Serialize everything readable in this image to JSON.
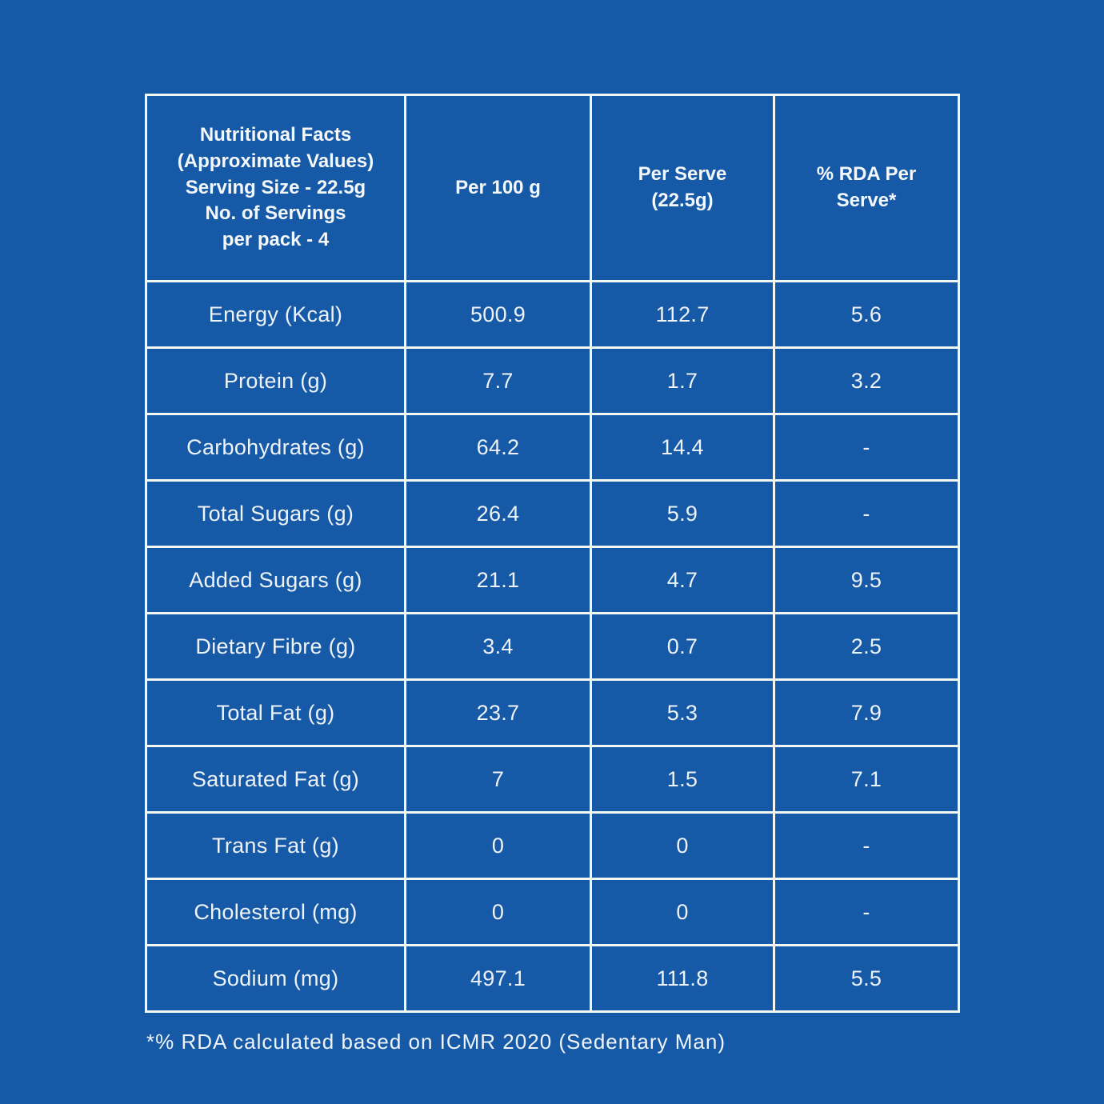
{
  "page": {
    "background_color": "#1659A6",
    "grid_line_color": "#F3F6F1",
    "text_color": "#EDF3F8"
  },
  "table": {
    "header": {
      "info_cell": "Nutritional Facts\n(Approximate Values)\nServing Size - 22.5g\nNo. of Servings\nper pack - 4",
      "per_100g": "Per 100 g",
      "per_serve": "Per Serve\n(22.5g)",
      "rda_per_serve": "% RDA Per\nServe*"
    },
    "rows": [
      {
        "label": "Energy (Kcal)",
        "per100g": "500.9",
        "per_serve": "112.7",
        "rda": "5.6"
      },
      {
        "label": "Protein (g)",
        "per100g": "7.7",
        "per_serve": "1.7",
        "rda": "3.2"
      },
      {
        "label": "Carbohydrates (g)",
        "per100g": "64.2",
        "per_serve": "14.4",
        "rda": "-"
      },
      {
        "label": "Total Sugars (g)",
        "per100g": "26.4",
        "per_serve": "5.9",
        "rda": "-"
      },
      {
        "label": "Added Sugars (g)",
        "per100g": "21.1",
        "per_serve": "4.7",
        "rda": "9.5"
      },
      {
        "label": "Dietary Fibre (g)",
        "per100g": "3.4",
        "per_serve": "0.7",
        "rda": "2.5"
      },
      {
        "label": "Total Fat (g)",
        "per100g": "23.7",
        "per_serve": "5.3",
        "rda": "7.9"
      },
      {
        "label": "Saturated Fat (g)",
        "per100g": "7",
        "per_serve": "1.5",
        "rda": "7.1"
      },
      {
        "label": "Trans Fat (g)",
        "per100g": "0",
        "per_serve": "0",
        "rda": "-"
      },
      {
        "label": "Cholesterol (mg)",
        "per100g": "0",
        "per_serve": "0",
        "rda": "-"
      },
      {
        "label": "Sodium (mg)",
        "per100g": "497.1",
        "per_serve": "111.8",
        "rda": "5.5"
      }
    ]
  },
  "footnote": "*% RDA calculated based on ICMR 2020 (Sedentary Man)",
  "chart_data": {
    "type": "table",
    "title": "Nutritional Facts (Approximate Values) Serving Size - 22.5g No. of Servings per pack - 4",
    "columns": [
      "Nutrient",
      "Per 100 g",
      "Per Serve (22.5g)",
      "% RDA Per Serve*"
    ],
    "rows": [
      [
        "Energy (Kcal)",
        "500.9",
        "112.7",
        "5.6"
      ],
      [
        "Protein (g)",
        "7.7",
        "1.7",
        "3.2"
      ],
      [
        "Carbohydrates (g)",
        "64.2",
        "14.4",
        "-"
      ],
      [
        "Total Sugars (g)",
        "26.4",
        "5.9",
        "-"
      ],
      [
        "Added Sugars (g)",
        "21.1",
        "4.7",
        "9.5"
      ],
      [
        "Dietary Fibre (g)",
        "3.4",
        "0.7",
        "2.5"
      ],
      [
        "Total Fat (g)",
        "23.7",
        "5.3",
        "7.9"
      ],
      [
        "Saturated Fat (g)",
        "7",
        "1.5",
        "7.1"
      ],
      [
        "Trans Fat (g)",
        "0",
        "0",
        "-"
      ],
      [
        "Cholesterol (mg)",
        "0",
        "0",
        "-"
      ],
      [
        "Sodium (mg)",
        "497.1",
        "111.8",
        "5.5"
      ]
    ],
    "annotations": [
      "*% RDA calculated based on ICMR 2020 (Sedentary Man)"
    ]
  }
}
